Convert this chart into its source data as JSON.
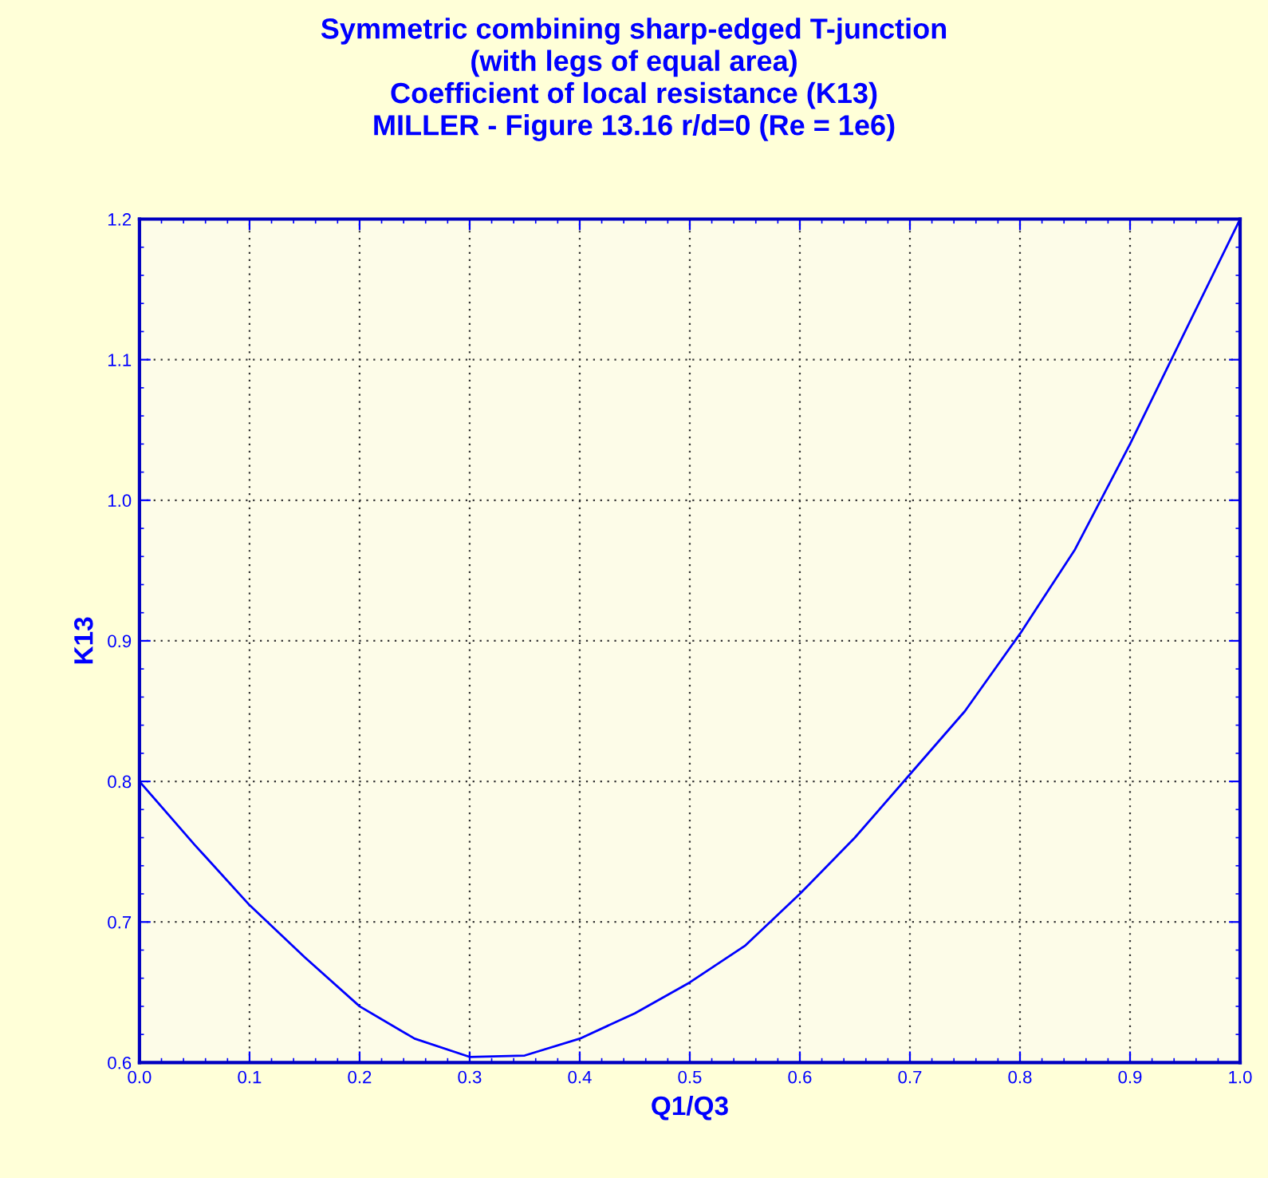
{
  "chart_data": {
    "type": "line",
    "title": "Symmetric combining sharp-edged T-junction\n(with legs of equal area)\nCoefficient of local resistance (K13)\nMILLER - Figure 13.16 r/d=0 (Re = 1e6)",
    "xlabel": "Q1/Q3",
    "ylabel": "K13",
    "x": [
      0,
      0.05,
      0.1,
      0.15,
      0.2,
      0.25,
      0.3,
      0.35,
      0.4,
      0.45,
      0.5,
      0.55,
      0.6,
      0.65,
      0.7,
      0.75,
      0.8,
      0.85,
      0.9,
      0.95,
      1.0
    ],
    "series": [
      {
        "color": "#0000ff",
        "values": [
          0.8,
          0.755,
          0.712,
          0.675,
          0.64,
          0.617,
          0.604,
          0.605,
          0.617,
          0.635,
          0.657,
          0.683,
          0.72,
          0.76,
          0.805,
          0.85,
          0.905,
          0.965,
          1.04,
          1.12,
          1.2
        ]
      }
    ],
    "xlim": [
      0,
      1
    ],
    "ylim": [
      0.6,
      1.2
    ],
    "xticks": [
      {
        "value": 0,
        "label": "0.0"
      },
      0.1,
      0.2,
      0.3,
      0.4,
      0.5,
      0.6,
      0.7,
      0.8,
      0.9,
      {
        "value": 1,
        "label": "1.0"
      }
    ],
    "yticks": [
      0.6,
      0.7,
      0.8,
      0.9,
      {
        "value": 1,
        "label": "1.0"
      },
      1.1,
      1.2
    ],
    "grid": true,
    "marker": "none",
    "line_style": "solid",
    "legend": false
  }
}
